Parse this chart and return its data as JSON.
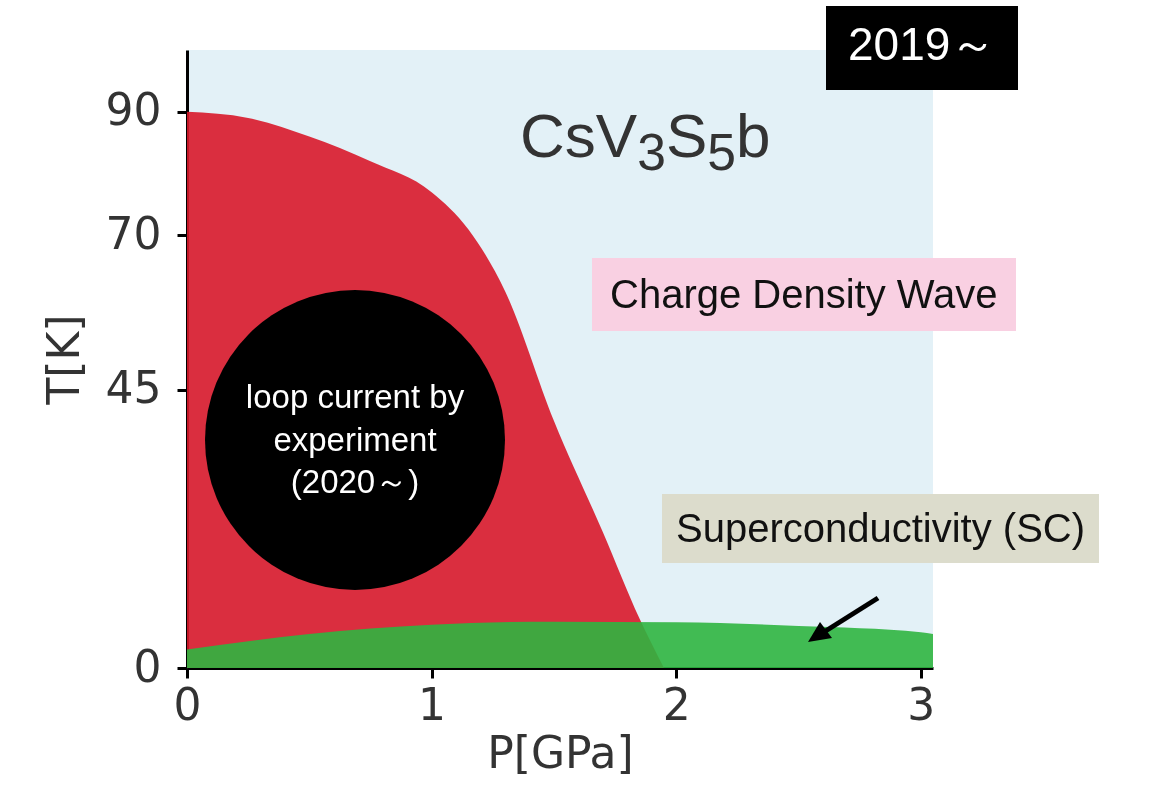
{
  "chart_data": {
    "type": "area",
    "xlabel": "P[GPa]",
    "ylabel": "T[K]",
    "xlim": [
      0,
      3.05
    ],
    "ylim": [
      0,
      100
    ],
    "xticks": [
      0,
      1,
      2,
      3
    ],
    "yticks": [
      0,
      45,
      70,
      90
    ],
    "series": [
      {
        "color": "#d8182a",
        "x": [
          0,
          0.25,
          0.5,
          0.75,
          1,
          1.15,
          1.3,
          1.5,
          1.7,
          1.85,
          1.95
        ],
        "values": [
          90,
          89,
          86,
          82,
          77,
          71,
          61,
          40,
          22,
          8,
          0
        ]
      },
      {
        "color": "#2fb540",
        "x": [
          0,
          0.5,
          1,
          1.5,
          2,
          2.5,
          3,
          3.05
        ],
        "values": [
          3,
          5.5,
          7,
          7.5,
          7.4,
          6.8,
          5.8,
          5.5
        ]
      }
    ],
    "annotations": [
      "CsV$_{3}$S$_{5}$b",
      "Charge Density Wave",
      "Superconductivity (SC)",
      "loop current by experiment (2020～)",
      "2019～"
    ]
  }
}
